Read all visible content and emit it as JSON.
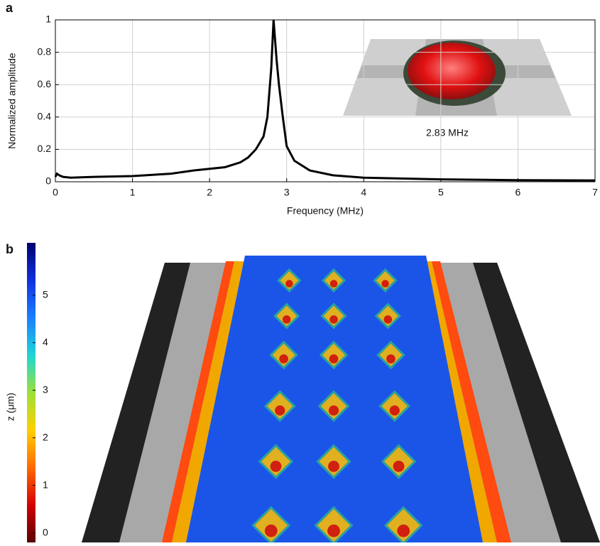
{
  "chart_data": [
    {
      "type": "line",
      "panel_label": "a",
      "xlabel": "Frequency (MHz)",
      "ylabel": "Normalized amplitude",
      "annotation": "2.83 MHz",
      "x": [
        0,
        0.02,
        0.05,
        0.1,
        0.2,
        0.5,
        1,
        1.5,
        1.8,
        2,
        2.2,
        2.4,
        2.5,
        2.6,
        2.7,
        2.75,
        2.8,
        2.83,
        2.87,
        2.9,
        2.95,
        3,
        3.1,
        3.3,
        3.6,
        4,
        5,
        6,
        7
      ],
      "values": [
        0.03,
        0.05,
        0.04,
        0.03,
        0.025,
        0.03,
        0.035,
        0.05,
        0.07,
        0.08,
        0.09,
        0.12,
        0.15,
        0.2,
        0.28,
        0.4,
        0.7,
        1,
        0.75,
        0.6,
        0.4,
        0.22,
        0.13,
        0.07,
        0.04,
        0.025,
        0.015,
        0.01,
        0.008
      ],
      "color": "#000000",
      "xlim": [
        0,
        7
      ],
      "xticks": [
        0,
        1,
        2,
        3,
        4,
        5,
        6,
        7
      ],
      "ylim": [
        0,
        1
      ],
      "yticks": [
        0,
        0.2,
        0.4,
        0.6,
        0.8,
        1
      ],
      "grid": true
    },
    {
      "type": "colorbar",
      "panel_label": "b",
      "ylabel": "z (μm)",
      "ylim": [
        -0.2,
        6.1
      ],
      "yticks": [
        0,
        1,
        2,
        3,
        4,
        5
      ],
      "colors": [
        "#5a0000",
        "#d40000",
        "#ff6a00",
        "#ffd000",
        "#9be03a",
        "#1fd6d6",
        "#1a7fff",
        "#1030e0",
        "#00006e"
      ]
    }
  ]
}
